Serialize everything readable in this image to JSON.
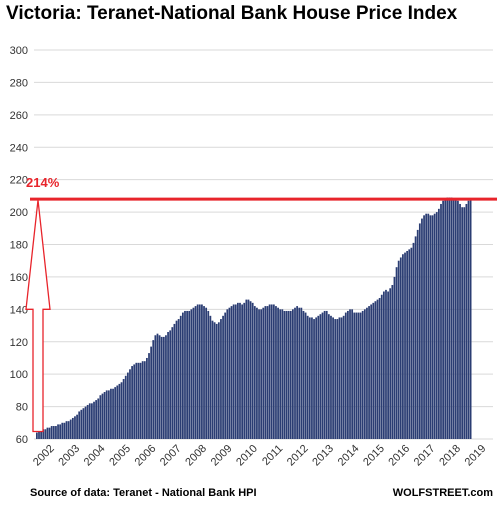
{
  "chart_data": {
    "type": "bar",
    "title": "Victoria: Teranet-National  Bank House Price Index",
    "source": "Source of data: Teranet - National Bank HPI",
    "brand": "WOLFSTREET.com",
    "ylim": [
      60,
      300
    ],
    "yticks": [
      60,
      80,
      100,
      120,
      140,
      160,
      180,
      200,
      220,
      240,
      260,
      280,
      300
    ],
    "year_labels": [
      "2002",
      "2003",
      "2004",
      "2005",
      "2006",
      "2007",
      "2008",
      "2009",
      "2010",
      "2011",
      "2012",
      "2013",
      "2014",
      "2015",
      "2016",
      "2017",
      "2018",
      "2019"
    ],
    "start": "2002-01",
    "grid": true,
    "bar_color": "#2b3d73",
    "reference_line": {
      "value": 208,
      "color": "#e8242b"
    },
    "annotation": {
      "label": "214%",
      "color": "#e8242b"
    },
    "values": [
      64,
      65,
      65,
      66,
      66,
      67,
      67,
      68,
      68,
      68,
      69,
      69,
      70,
      70,
      71,
      71,
      72,
      73,
      74,
      75,
      77,
      78,
      79,
      80,
      81,
      82,
      82,
      83,
      84,
      85,
      87,
      88,
      89,
      90,
      90,
      91,
      91,
      92,
      93,
      94,
      95,
      97,
      99,
      101,
      103,
      105,
      106,
      107,
      107,
      107,
      108,
      108,
      110,
      113,
      117,
      121,
      124,
      125,
      124,
      123,
      123,
      124,
      126,
      127,
      129,
      131,
      133,
      134,
      136,
      138,
      139,
      139,
      139,
      140,
      141,
      142,
      143,
      143,
      143,
      142,
      141,
      139,
      136,
      133,
      132,
      131,
      132,
      134,
      136,
      138,
      140,
      141,
      142,
      143,
      143,
      144,
      144,
      143,
      144,
      146,
      146,
      145,
      144,
      142,
      141,
      140,
      140,
      141,
      142,
      142,
      143,
      143,
      143,
      142,
      141,
      140,
      140,
      139,
      139,
      139,
      139,
      140,
      141,
      142,
      141,
      141,
      139,
      138,
      136,
      135,
      135,
      134,
      135,
      136,
      137,
      138,
      139,
      139,
      137,
      136,
      135,
      134,
      134,
      135,
      135,
      136,
      138,
      139,
      140,
      140,
      138,
      138,
      138,
      138,
      139,
      140,
      141,
      142,
      143,
      144,
      145,
      146,
      147,
      149,
      151,
      152,
      151,
      153,
      155,
      160,
      166,
      170,
      172,
      174,
      175,
      176,
      177,
      178,
      181,
      185,
      189,
      193,
      196,
      198,
      199,
      199,
      198,
      198,
      199,
      200,
      202,
      205,
      207,
      208,
      209,
      209,
      209,
      208,
      208,
      207,
      205,
      203,
      203,
      205,
      207,
      208
    ]
  }
}
